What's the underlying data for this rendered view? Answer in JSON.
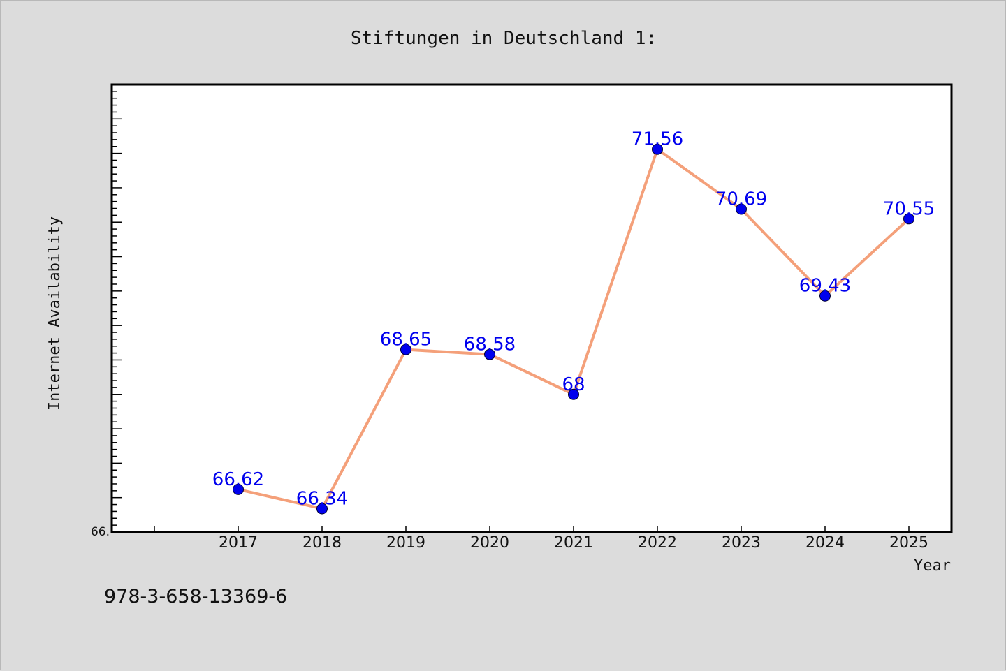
{
  "chart_data": {
    "type": "line",
    "title": "Stiftungen in Deutschland 1:",
    "xlabel": "Year",
    "ylabel": "Internet Availability",
    "ylim_label": "66.",
    "ylim": [
      66.0,
      72.5
    ],
    "x": [
      "2017",
      "2018",
      "2019",
      "2020",
      "2021",
      "2022",
      "2023",
      "2024",
      "2025"
    ],
    "values": [
      66.62,
      66.34,
      68.65,
      68.58,
      68.0,
      71.56,
      70.69,
      69.43,
      70.55
    ],
    "data_labels": [
      "66.62",
      "66.34",
      "68.65",
      "68.58",
      "68",
      "71.56",
      "70.69",
      "69.43",
      "70.55"
    ],
    "grid": false,
    "colors": {
      "line": "#f4a07a",
      "marker": "#0000ee",
      "label": "#0000ee",
      "plot_bg": "#ffffff",
      "page_bg": "#dcdcdc"
    }
  },
  "footer": {
    "isbn": "978-3-658-13369-6"
  }
}
